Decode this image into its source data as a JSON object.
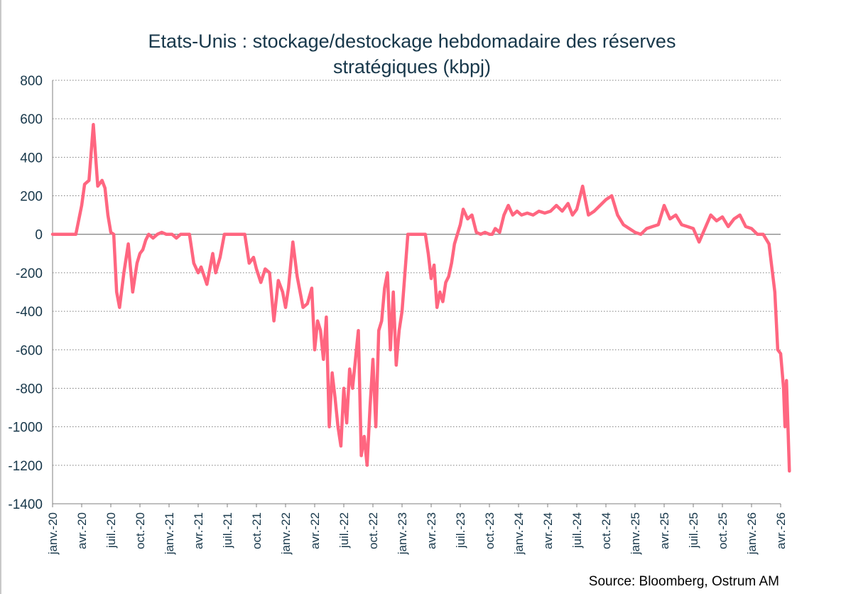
{
  "title_line1": "Etats-Unis : stockage/destockage hebdomadaire des réserves",
  "title_line2": "stratégiques (kbpj)",
  "source": "Source: Bloomberg, Ostrum AM",
  "series_color": "#ff6680",
  "chart_data": {
    "type": "line",
    "title": "Etats-Unis : stockage/destockage hebdomadaire des réserves stratégiques (kbpj)",
    "xlabel": "",
    "ylabel": "",
    "ylim": [
      -1400,
      800
    ],
    "yticks": [
      -1400,
      -1200,
      -1000,
      -800,
      -600,
      -400,
      -200,
      0,
      200,
      400,
      600,
      800
    ],
    "xlim": [
      "2020-01",
      "2026-04"
    ],
    "xticks": [
      "janv.-20",
      "avr.-20",
      "juil.-20",
      "oct.-20",
      "janv.-21",
      "avr.-21",
      "juil.-21",
      "oct.-21",
      "janv.-22",
      "avr.-22",
      "juil.-22",
      "oct.-22",
      "janv.-23",
      "avr.-23",
      "juil.-23",
      "oct.-23",
      "janv.-24",
      "avr.-24",
      "juil.-24",
      "oct.-24",
      "janv.-25",
      "avr.-25",
      "juil.-25",
      "oct.-25",
      "janv.-26",
      "avr.-26"
    ],
    "grid": "horizontal-dotted",
    "legend": "none",
    "series": [
      {
        "x": [
          0,
          0.8,
          1,
          1.1,
          1.25,
          1.4,
          1.55,
          1.7,
          1.8,
          1.9,
          2.0,
          2.1,
          2.2,
          2.3,
          2.45,
          2.6,
          2.75,
          2.9,
          3.0,
          3.1,
          3.2,
          3.3,
          3.45,
          3.6,
          3.75,
          3.9,
          4.0,
          4.1,
          4.25,
          4.4,
          4.55,
          4.7,
          4.85,
          5.0,
          5.1,
          5.3,
          5.5,
          5.6,
          5.75,
          5.9,
          6.0,
          6.2,
          6.4,
          6.6,
          6.75,
          6.9,
          7.0,
          7.15,
          7.3,
          7.45,
          7.6,
          7.75,
          7.9,
          8.0,
          8.1,
          8.25,
          8.4,
          8.6,
          8.75,
          8.9,
          9.0,
          9.1,
          9.2,
          9.3,
          9.4,
          9.5,
          9.6,
          9.7,
          9.8,
          9.9,
          10.0,
          10.1,
          10.2,
          10.3,
          10.4,
          10.5,
          10.6,
          10.7,
          10.8,
          10.9,
          11.0,
          11.1,
          11.2,
          11.3,
          11.4,
          11.5,
          11.6,
          11.7,
          11.8,
          11.9,
          12.0,
          12.2,
          12.5,
          12.8,
          12.9,
          13.0,
          13.1,
          13.2,
          13.3,
          13.4,
          13.5,
          13.6,
          13.7,
          13.8,
          13.9,
          14.0,
          14.1,
          14.25,
          14.4,
          14.55,
          14.7,
          14.85,
          15.0,
          15.1,
          15.2,
          15.35,
          15.5,
          15.65,
          15.8,
          15.95,
          16.1,
          16.3,
          16.5,
          16.7,
          16.9,
          17.1,
          17.3,
          17.5,
          17.7,
          17.85,
          18.0,
          18.2,
          18.4,
          18.6,
          18.8,
          19.0,
          19.2,
          19.4,
          19.6,
          19.8,
          20.0,
          20.2,
          20.4,
          20.6,
          20.8,
          21.0,
          21.2,
          21.4,
          21.6,
          21.8,
          22.0,
          22.2,
          22.4,
          22.6,
          22.8,
          23.0,
          23.2,
          23.4,
          23.6,
          23.8,
          24.0,
          24.2,
          24.4,
          24.6,
          24.8,
          24.9,
          25.0,
          25.1,
          25.15,
          25.2,
          25.3
        ],
        "values": [
          0,
          0,
          150,
          260,
          280,
          570,
          250,
          280,
          240,
          100,
          10,
          0,
          -300,
          -380,
          -200,
          -50,
          -300,
          -150,
          -100,
          -80,
          -30,
          0,
          -20,
          0,
          10,
          0,
          0,
          0,
          -20,
          0,
          0,
          0,
          -150,
          -200,
          -170,
          -260,
          -100,
          -200,
          -120,
          0,
          0,
          0,
          0,
          0,
          -150,
          -120,
          -180,
          -250,
          -180,
          -200,
          -450,
          -240,
          -300,
          -380,
          -280,
          -40,
          -220,
          -380,
          -360,
          -280,
          -600,
          -450,
          -500,
          -650,
          -430,
          -1000,
          -720,
          -850,
          -1000,
          -1100,
          -800,
          -980,
          -700,
          -800,
          -650,
          -500,
          -1150,
          -1050,
          -1200,
          -900,
          -650,
          -1000,
          -500,
          -450,
          -280,
          -200,
          -600,
          -300,
          -680,
          -500,
          -400,
          0,
          0,
          0,
          -100,
          -230,
          -160,
          -380,
          -300,
          -350,
          -250,
          -220,
          -150,
          -50,
          0,
          50,
          130,
          80,
          100,
          10,
          0,
          10,
          0,
          0,
          30,
          10,
          100,
          150,
          100,
          120,
          100,
          110,
          100,
          120,
          110,
          120,
          150,
          120,
          160,
          100,
          130,
          250,
          100,
          120,
          150,
          180,
          200,
          100,
          50,
          30,
          10,
          0,
          30,
          40,
          50,
          150,
          80,
          100,
          50,
          40,
          30,
          -40,
          30,
          100,
          70,
          90,
          40,
          80,
          100,
          40,
          30,
          0,
          0,
          -50,
          -300,
          -600,
          -620,
          -800,
          -1000,
          -760,
          -1230
        ],
        "x_unit": "months since janv.-20"
      }
    ]
  }
}
